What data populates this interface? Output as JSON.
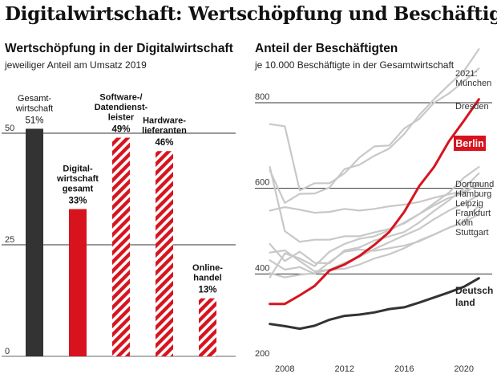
{
  "title": "Digitalwirtschaft: Wertschöpfung und Beschäftigte",
  "colors": {
    "dark": "#333333",
    "red": "#d7141e",
    "grey": "#c8c8c8",
    "grid": "#333333"
  },
  "chart_data": [
    {
      "type": "bar",
      "title": "Wertschöpfung in der Digitalwirtschaft",
      "subtitle": "jeweiliger Anteil am Umsatz 2019",
      "ylim": [
        0,
        50
      ],
      "yticks": [
        0,
        25,
        50
      ],
      "categories": [
        [
          "Gesamt-",
          "wirtschaft"
        ],
        [
          "Digital-",
          "wirtschaft",
          "gesamt"
        ],
        [
          "Software-/",
          "Datendienst-",
          "leister"
        ],
        [
          "Hardware-",
          "lieferanten"
        ],
        [
          "Online-",
          "handel"
        ]
      ],
      "values": [
        51,
        33,
        49,
        46,
        13
      ],
      "value_labels": [
        "51%",
        "33%",
        "49%",
        "46%",
        "13%"
      ],
      "styles": [
        "dark",
        "red",
        "striped",
        "striped",
        "striped"
      ]
    },
    {
      "type": "line",
      "title": "Anteil der Beschäftigten",
      "subtitle": "je 10.000 Beschäftigte in der Gesamtwirtschaft",
      "xlim": [
        2006,
        2022
      ],
      "ylim": [
        200,
        860
      ],
      "xticks": [
        2008,
        2012,
        2016,
        2020
      ],
      "yticks": [
        200,
        400,
        600,
        800
      ],
      "year_label": "2021:",
      "x": [
        2007,
        2008,
        2009,
        2010,
        2011,
        2012,
        2013,
        2014,
        2015,
        2016,
        2017,
        2018,
        2019,
        2020,
        2021
      ],
      "series": [
        {
          "name": "München",
          "values": [
            642,
            566,
            587,
            588,
            602,
            645,
            655,
            676,
            693,
            727,
            771,
            808,
            842,
            874,
            925
          ],
          "highlight": false
        },
        {
          "name": "Dresden",
          "values": [
            750,
            745,
            595,
            612,
            612,
            635,
            672,
            698,
            700,
            740,
            762,
            800,
            822,
            850,
            880
          ]
        },
        {
          "name": "Berlin",
          "values": [
            330,
            330,
            350,
            372,
            408,
            422,
            442,
            468,
            498,
            545,
            605,
            650,
            710,
            758,
            808
          ],
          "highlight": true
        },
        {
          "name": "Dortmund",
          "values": [
            392,
            448,
            436,
            418,
            452,
            470,
            482,
            488,
            502,
            520,
            540,
            565,
            590,
            625,
            650
          ]
        },
        {
          "name": "Hamburg",
          "values": [
            470,
            430,
            452,
            426,
            425,
            455,
            462,
            478,
            488,
            498,
            520,
            547,
            572,
            600,
            635
          ]
        },
        {
          "name": "Leipzig",
          "values": [
            650,
            500,
            475,
            480,
            480,
            488,
            488,
            497,
            505,
            518,
            540,
            560,
            578,
            588,
            613
          ]
        },
        {
          "name": "Frankfurt",
          "values": [
            548,
            556,
            550,
            543,
            545,
            552,
            548,
            552,
            558,
            562,
            568,
            578,
            586,
            593,
            608
          ]
        },
        {
          "name": "Köln",
          "values": [
            450,
            455,
            430,
            406,
            410,
            426,
            440,
            458,
            474,
            490,
            505,
            528,
            548,
            565,
            584
          ]
        },
        {
          "name": "Stuttgart",
          "values": [
            402,
            392,
            398,
            402,
            410,
            412,
            422,
            436,
            446,
            460,
            478,
            492,
            508,
            520,
            540
          ]
        },
        {
          "name": "Stuttgart-b",
          "values": [
            432,
            410,
            416,
            400,
            428,
            452,
            457,
            454,
            460,
            466,
            476,
            492,
            508,
            522,
            560
          ]
        },
        {
          "name": "Deutschland",
          "values": [
            283,
            278,
            272,
            279,
            293,
            302,
            305,
            310,
            318,
            322,
            333,
            345,
            357,
            370,
            390
          ],
          "highlight": "dark"
        }
      ],
      "labels": [
        "München",
        "Dresden",
        "Berlin",
        "Dortmund",
        "Hamburg",
        "Leipzig",
        "Frankfurt",
        "Köln",
        "Stuttgart",
        "Deutschland"
      ]
    }
  ]
}
